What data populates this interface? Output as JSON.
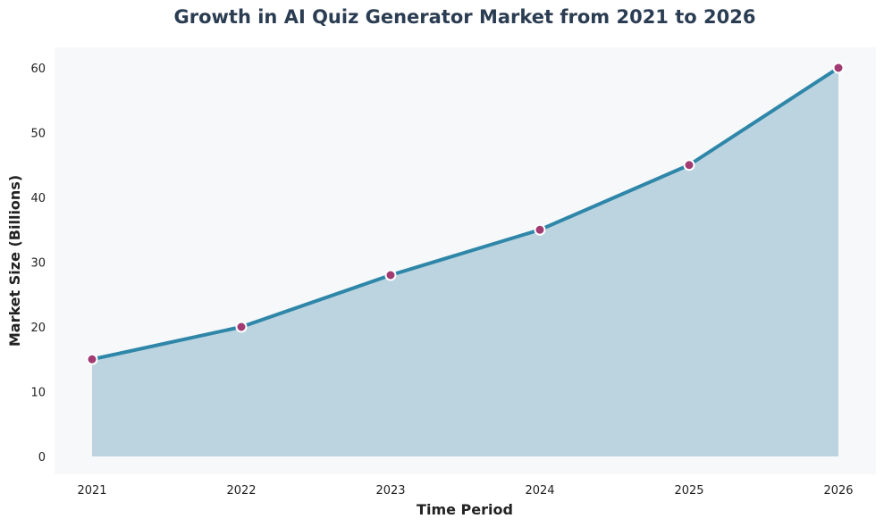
{
  "colors": {
    "title": "#2b3d52",
    "plot_background": "#f6f8fa",
    "line": "#2e86a8",
    "area": "#bbd4e0",
    "marker_fill": "#a23b72",
    "marker_edge": "#ffffff"
  },
  "chart_data": {
    "type": "area",
    "title": "Growth in AI Quiz Generator Market from 2021 to 2026",
    "xlabel": "Time Period",
    "ylabel": "Market Size (Billions)",
    "categories": [
      "2021",
      "2022",
      "2023",
      "2024",
      "2025",
      "2026"
    ],
    "series": [
      {
        "values": [
          15,
          20,
          28,
          35,
          45,
          60
        ]
      }
    ],
    "ylim": [
      -3,
      63
    ],
    "yticks": [
      0,
      10,
      20,
      30,
      40,
      50,
      60
    ],
    "grid": false,
    "legend": "none"
  }
}
